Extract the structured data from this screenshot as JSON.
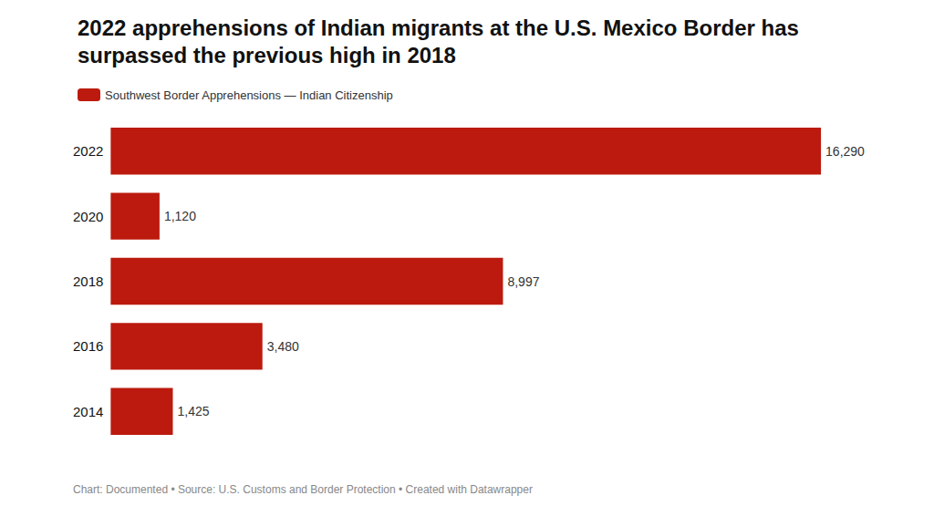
{
  "chart_data": {
    "type": "bar",
    "orientation": "horizontal",
    "title": "2022 apprehensions of Indian migrants at the U.S. Mexico Border has surpassed the previous high in 2018",
    "annotations": [
      "Chart: Documented • Source: U.S. Customs and Border Protection • Created with Datawrapper"
    ],
    "categories": [
      "2022",
      "2020",
      "2018",
      "2016",
      "2014"
    ],
    "series": [
      {
        "name": "Southwest Border Apprehensions — Indian Citizenship",
        "color": "#bc1a0e",
        "values": [
          16290,
          1120,
          8997,
          3480,
          1425
        ],
        "value_labels": [
          "16,290",
          "1,120",
          "8,997",
          "3,480",
          "1,425"
        ]
      }
    ],
    "xlim": [
      0,
      17000
    ],
    "data_labels": true,
    "tick_labels": "y",
    "grid": false,
    "legend": "upper left"
  }
}
